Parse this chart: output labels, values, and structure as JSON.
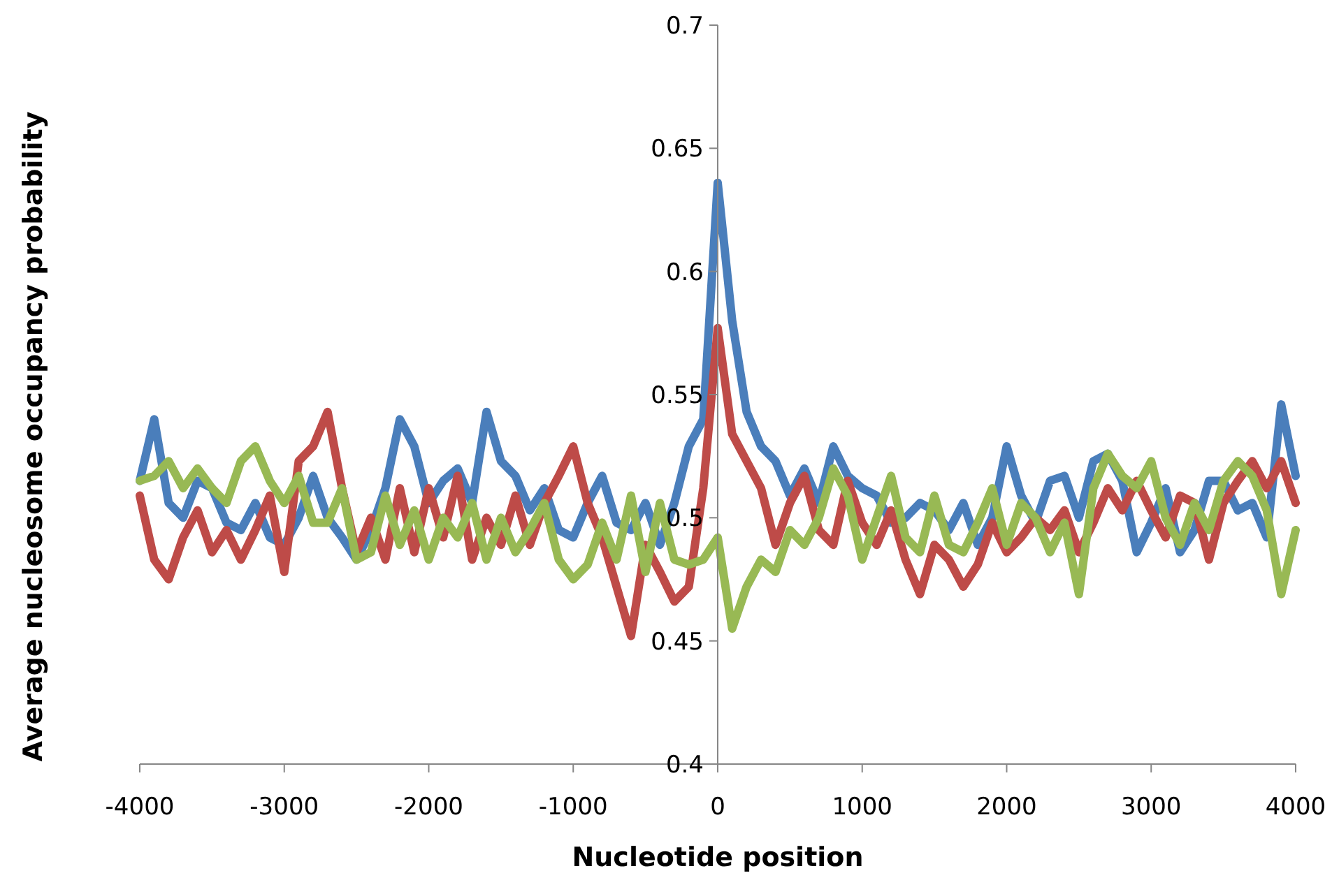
{
  "chart_data": {
    "type": "line",
    "xlabel": "Nucleotide position",
    "ylabel": "Average nucleosome occupancy probability",
    "xlim": [
      -4000,
      4000
    ],
    "xticks": [
      -4000,
      -3000,
      -2000,
      -1000,
      0,
      1000,
      2000,
      3000,
      4000
    ],
    "ylim": [
      0.4,
      0.7
    ],
    "yticks": [
      0.4,
      0.45,
      0.5,
      0.55,
      0.6,
      0.65,
      0.7
    ],
    "line_style": "solid",
    "x": [
      -4000,
      -3900,
      -3800,
      -3700,
      -3600,
      -3500,
      -3400,
      -3300,
      -3200,
      -3100,
      -3000,
      -2900,
      -2800,
      -2700,
      -2600,
      -2500,
      -2400,
      -2300,
      -2200,
      -2100,
      -2000,
      -1900,
      -1800,
      -1700,
      -1600,
      -1500,
      -1400,
      -1300,
      -1200,
      -1100,
      -1000,
      -900,
      -800,
      -700,
      -600,
      -500,
      -400,
      -300,
      -200,
      -100,
      0,
      100,
      200,
      300,
      400,
      500,
      600,
      700,
      800,
      900,
      1000,
      1100,
      1200,
      1300,
      1400,
      1500,
      1600,
      1700,
      1800,
      1900,
      2000,
      2100,
      2200,
      2300,
      2400,
      2500,
      2600,
      2700,
      2800,
      2900,
      3000,
      3100,
      3200,
      3300,
      3400,
      3500,
      3600,
      3700,
      3800,
      3900,
      4000
    ],
    "series": [
      {
        "color": "#4a7ebb",
        "values": [
          0.515,
          0.54,
          0.506,
          0.5,
          0.515,
          0.512,
          0.498,
          0.495,
          0.506,
          0.492,
          0.489,
          0.5,
          0.517,
          0.5,
          0.492,
          0.483,
          0.495,
          0.512,
          0.54,
          0.529,
          0.506,
          0.515,
          0.52,
          0.506,
          0.543,
          0.523,
          0.517,
          0.503,
          0.512,
          0.495,
          0.492,
          0.506,
          0.517,
          0.498,
          0.495,
          0.506,
          0.489,
          0.506,
          0.529,
          0.54,
          0.636,
          0.58,
          0.543,
          0.529,
          0.523,
          0.509,
          0.52,
          0.506,
          0.529,
          0.517,
          0.512,
          0.509,
          0.498,
          0.5,
          0.506,
          0.503,
          0.495,
          0.506,
          0.489,
          0.5,
          0.529,
          0.509,
          0.498,
          0.515,
          0.517,
          0.5,
          0.523,
          0.526,
          0.515,
          0.486,
          0.498,
          0.512,
          0.486,
          0.495,
          0.515,
          0.515,
          0.503,
          0.506,
          0.492,
          0.546,
          0.517
        ]
      },
      {
        "color": "#be4b48",
        "values": [
          0.509,
          0.483,
          0.475,
          0.492,
          0.503,
          0.486,
          0.495,
          0.483,
          0.495,
          0.509,
          0.478,
          0.523,
          0.529,
          0.543,
          0.512,
          0.486,
          0.5,
          0.483,
          0.512,
          0.486,
          0.512,
          0.492,
          0.517,
          0.483,
          0.5,
          0.489,
          0.509,
          0.489,
          0.506,
          0.517,
          0.529,
          0.506,
          0.492,
          0.472,
          0.452,
          0.489,
          0.478,
          0.466,
          0.472,
          0.512,
          0.577,
          0.534,
          0.523,
          0.512,
          0.489,
          0.506,
          0.517,
          0.495,
          0.489,
          0.515,
          0.498,
          0.489,
          0.503,
          0.483,
          0.469,
          0.489,
          0.483,
          0.472,
          0.481,
          0.498,
          0.486,
          0.492,
          0.5,
          0.495,
          0.503,
          0.486,
          0.498,
          0.512,
          0.503,
          0.515,
          0.503,
          0.492,
          0.509,
          0.506,
          0.483,
          0.506,
          0.515,
          0.523,
          0.512,
          0.523,
          0.506
        ]
      },
      {
        "color": "#98b954",
        "values": [
          0.515,
          0.517,
          0.523,
          0.512,
          0.52,
          0.512,
          0.506,
          0.523,
          0.529,
          0.515,
          0.506,
          0.517,
          0.498,
          0.498,
          0.512,
          0.483,
          0.486,
          0.509,
          0.489,
          0.503,
          0.483,
          0.5,
          0.492,
          0.506,
          0.483,
          0.5,
          0.486,
          0.495,
          0.506,
          0.483,
          0.475,
          0.481,
          0.498,
          0.483,
          0.509,
          0.478,
          0.506,
          0.483,
          0.481,
          0.483,
          0.492,
          0.455,
          0.472,
          0.483,
          0.478,
          0.495,
          0.489,
          0.5,
          0.52,
          0.509,
          0.483,
          0.5,
          0.517,
          0.492,
          0.486,
          0.509,
          0.489,
          0.486,
          0.498,
          0.512,
          0.489,
          0.506,
          0.5,
          0.486,
          0.498,
          0.469,
          0.512,
          0.526,
          0.517,
          0.512,
          0.523,
          0.5,
          0.489,
          0.506,
          0.495,
          0.515,
          0.523,
          0.517,
          0.503,
          0.469,
          0.495
        ]
      }
    ]
  }
}
